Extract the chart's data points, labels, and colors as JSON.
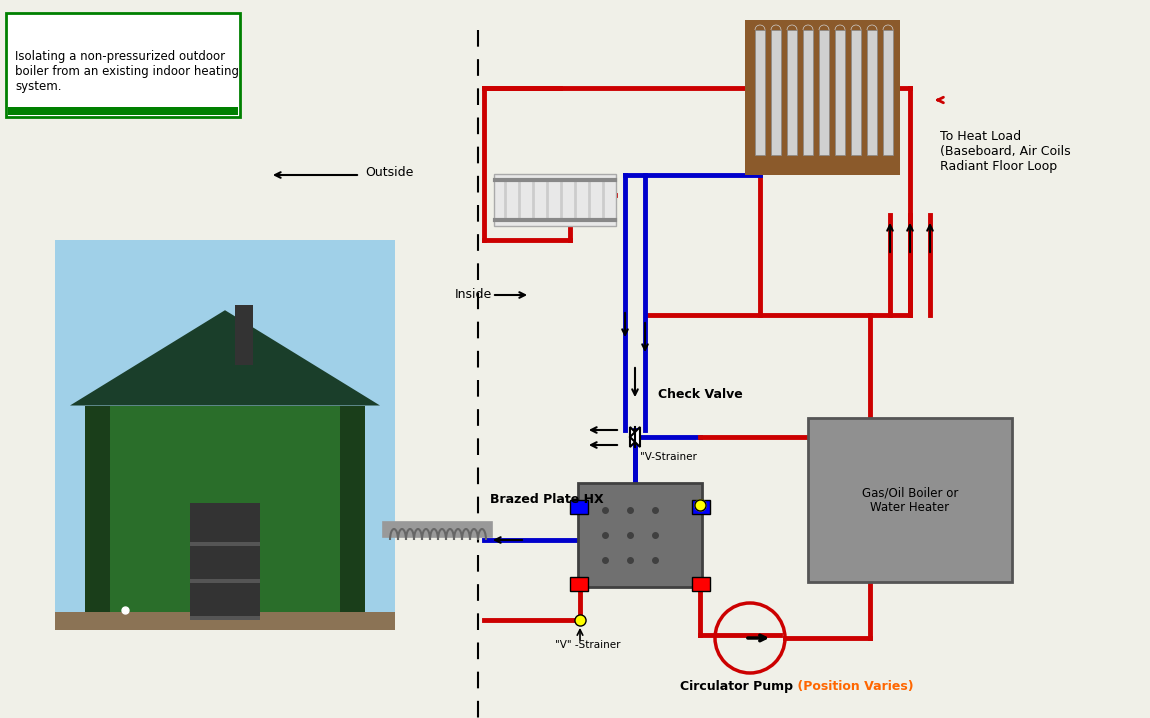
{
  "bg_color": "#f0f0e8",
  "title_box_text": "Isolating a non-pressurized outdoor\nboiler from an existing indoor heating\nsystem.",
  "title_box_color": "#ffffff",
  "title_box_border": "#008000",
  "outside_label": "←  Outside",
  "inside_label": "Inside →",
  "check_valve_label": "Check Valve",
  "brazed_hx_label": "Brazed Plate HX",
  "v_strainer_label1": "\"V\"-Strainer",
  "v_strainer_label2": "\"V\" -Strainer",
  "circ_pump_label": "Circulator Pump",
  "circ_pump_sublabel": " (Position Varies)",
  "gas_boiler_label": "Gas/Oil Boiler or\nWater Heater",
  "heat_load_label": "To Heat Load\n(Baseboard, Air Coils\nRadiant Floor Loop",
  "red_color": "#cc0000",
  "blue_color": "#0000cc",
  "gray_color": "#808080",
  "yellow_color": "#ffff00",
  "dashed_line_x": 0.415,
  "pipe_lw": 3.5
}
